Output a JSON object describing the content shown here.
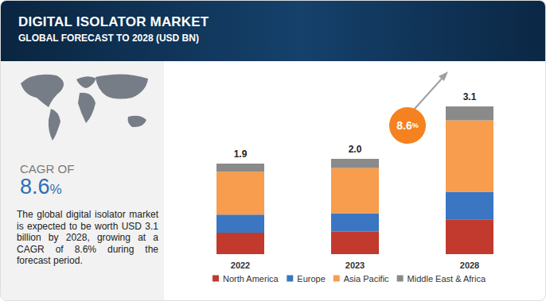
{
  "chart_data": {
    "type": "bar",
    "stacked": true,
    "title": "DIGITAL ISOLATOR MARKET",
    "subtitle": "GLOBAL FORECAST TO 2028 (USD BN)",
    "categories": [
      "2022",
      "2023",
      "2028"
    ],
    "series": [
      {
        "name": "North America",
        "color": "#c2392d",
        "values": [
          0.45,
          0.47,
          0.73
        ]
      },
      {
        "name": "Europe",
        "color": "#3a76c2",
        "values": [
          0.38,
          0.39,
          0.58
        ]
      },
      {
        "name": "Asia Pacific",
        "color": "#f79d4d",
        "values": [
          0.9,
          0.95,
          1.5
        ]
      },
      {
        "name": "Middle East & Africa",
        "color": "#8a8a8a",
        "values": [
          0.17,
          0.19,
          0.29
        ]
      }
    ],
    "totals": [
      1.9,
      2,
      3.1
    ],
    "total_labels": [
      "1.9",
      "2.0",
      "3.1"
    ],
    "ylim": [
      0,
      3.5
    ],
    "tick_labels": "x",
    "grid": false,
    "legend": "bottom",
    "annotations": {
      "growth_badge": "8.6%",
      "cagr_label": "CAGR OF",
      "cagr_value": "8.6%",
      "description": "The global digital isolator market is expected to be worth USD 3.1 billion by 2028, growing at a CAGR of 8.6% during the forecast period."
    }
  }
}
